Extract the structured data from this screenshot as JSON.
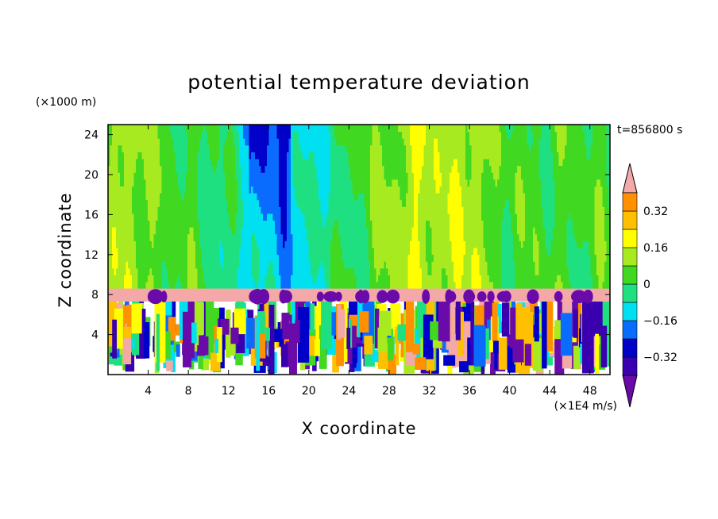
{
  "chart_data": {
    "type": "heatmap",
    "title": "potential temperature deviation",
    "xlabel": "X coordinate",
    "ylabel": "Z coordinate",
    "x_unit": "(×1E4 m/s)",
    "y_unit": "(×1000 m)",
    "time_label": "t=856800 s",
    "xlim": [
      0,
      50
    ],
    "ylim": [
      0,
      25
    ],
    "x_ticks": [
      4,
      8,
      12,
      16,
      20,
      24,
      28,
      32,
      36,
      40,
      44,
      48
    ],
    "y_ticks": [
      4,
      8,
      12,
      16,
      20,
      24
    ],
    "colorbar": {
      "levels": [
        -0.4,
        -0.32,
        -0.24,
        -0.16,
        -0.08,
        0,
        0.08,
        0.16,
        0.24,
        0.32,
        0.4
      ],
      "labeled_ticks": [
        0.32,
        0.16,
        0,
        -0.16,
        -0.32
      ],
      "colors": [
        "#5a0fa0",
        "#3a00b0",
        "#0000c8",
        "#0a6cff",
        "#00e0f0",
        "#1fe080",
        "#40d820",
        "#a8ea20",
        "#ffff00",
        "#ffc000",
        "#ff9000",
        "#ff4030",
        "#ff1010"
      ],
      "over_color": "#f4a8a8",
      "under_color": "#6a0aa8"
    },
    "layers": {
      "upper_domain_dominant_values": [
        0.04,
        -0.12,
        0.12
      ],
      "tropopause_band_z": [
        7.3,
        8.6
      ],
      "tropopause_band_value": "above 0.4",
      "lower_domain_z": [
        0,
        7.3
      ],
      "lower_domain_range": [
        -0.4,
        0.4
      ]
    }
  }
}
